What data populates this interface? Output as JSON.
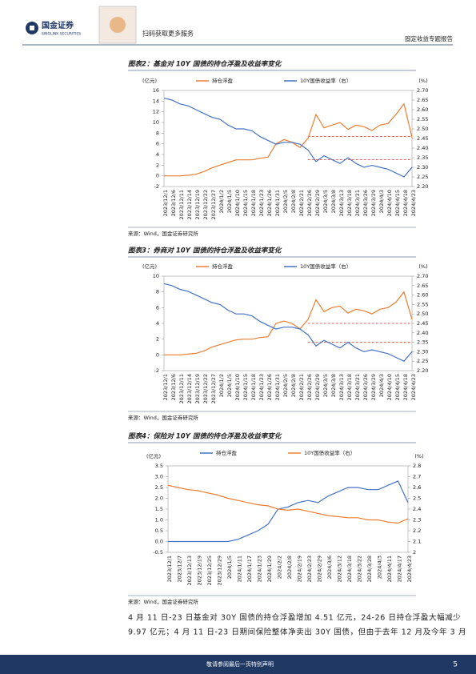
{
  "header": {
    "logo": "国金证券",
    "logo_en": "SINOLINK SECURITIES",
    "qr_text": "扫码获取更多服务",
    "report_type": "固定收益专题报告"
  },
  "chart_data": [
    {
      "type": "line",
      "title": "图表2：基金对 10Y 国债的持仓浮盈及收益率变化",
      "y_label": "(亿元)",
      "y2_label": "(%)",
      "categories": [
        "2023/12/1",
        "2023/12/6",
        "2023/12/11",
        "2023/12/14",
        "2023/12/19",
        "2023/12/22",
        "2023/12/27",
        "2024/1/2",
        "2024/1/5",
        "2024/1/10",
        "2024/1/15",
        "2024/1/18",
        "2024/1/23",
        "2024/1/26",
        "2024/1/31",
        "2024/2/5",
        "2024/2/8",
        "2024/2/21",
        "2024/2/26",
        "2024/2/29",
        "2024/3/5",
        "2024/3/8",
        "2024/3/13",
        "2024/3/18",
        "2024/3/21",
        "2024/3/26",
        "2024/3/29",
        "2024/4/3",
        "2024/4/10",
        "2024/4/15",
        "2024/4/18",
        "2024/4/23"
      ],
      "series": [
        {
          "name": "持仓浮盈",
          "color": "#ED7D31",
          "values": [
            0,
            0,
            0,
            0.1,
            0.3,
            0.8,
            1.5,
            2,
            2.5,
            3,
            3,
            3,
            3.3,
            3.5,
            6,
            6.8,
            6.3,
            5.3,
            7,
            11.5,
            9,
            9.5,
            10,
            8.7,
            9.5,
            9.2,
            8.5,
            9.5,
            9.8,
            11.5,
            13.5,
            7.2
          ]
        },
        {
          "name": "10Y国债收益率（右）",
          "color": "#4472C4",
          "axis": "y2",
          "values": [
            2.66,
            2.65,
            2.63,
            2.62,
            2.6,
            2.58,
            2.56,
            2.55,
            2.52,
            2.5,
            2.5,
            2.49,
            2.46,
            2.44,
            2.42,
            2.43,
            2.43,
            2.42,
            2.39,
            2.33,
            2.36,
            2.34,
            2.32,
            2.35,
            2.32,
            2.3,
            2.31,
            2.3,
            2.29,
            2.27,
            2.25,
            2.3
          ]
        }
      ],
      "ylim": [
        -2,
        16
      ],
      "yticks": [
        -2,
        0,
        2,
        4,
        6,
        8,
        10,
        12,
        14,
        16
      ],
      "y2lim": [
        2.2,
        2.7
      ],
      "y2ticks": [
        {
          "value": 2.2,
          "label": "2.20"
        },
        2.25,
        {
          "value": 2.3,
          "label": "2.30"
        },
        2.35,
        {
          "value": 2.4,
          "label": "2.40"
        },
        2.45,
        {
          "value": 2.5,
          "label": "2.50"
        },
        2.55,
        {
          "value": 2.6,
          "label": "2.60"
        },
        2.65,
        {
          "value": 2.7,
          "label": "2.70"
        }
      ],
      "y2_reference_lines": [
        2.46,
        2.34
      ],
      "reference_color": "#E03030"
    },
    {
      "type": "line",
      "title": "图表3：券商对 10Y 国债的持仓浮盈及收益率变化",
      "y_label": "(亿元)",
      "y2_label": "(%)",
      "categories": [
        "2023/12/1",
        "2023/12/6",
        "2023/12/11",
        "2023/12/14",
        "2023/12/19",
        "2023/12/22",
        "2023/12/27",
        "2024/1/2",
        "2024/1/5",
        "2024/1/10",
        "2024/1/15",
        "2024/1/18",
        "2024/1/23",
        "2024/1/26",
        "2024/1/31",
        "2024/2/5",
        "2024/2/8",
        "2024/2/21",
        "2024/2/26",
        "2024/2/29",
        "2024/3/5",
        "2024/3/8",
        "2024/3/13",
        "2024/3/18",
        "2024/3/21",
        "2024/3/26",
        "2024/3/29",
        "2024/4/3",
        "2024/4/10",
        "2024/4/15",
        "2024/4/18",
        "2024/4/23"
      ],
      "series": [
        {
          "name": "持仓浮盈",
          "color": "#ED7D31",
          "values": [
            0,
            0,
            0,
            0.1,
            0.2,
            0.5,
            1,
            1.3,
            1.6,
            1.9,
            2,
            2,
            2.2,
            2.3,
            4,
            4.3,
            4,
            3.3,
            4.5,
            7,
            5.5,
            6,
            6.2,
            5.3,
            5.8,
            5.6,
            5.2,
            5.8,
            6,
            6.7,
            8,
            4.5
          ]
        },
        {
          "name": "10Y国债收益率（右）",
          "color": "#4472C4",
          "axis": "y2",
          "values": [
            2.66,
            2.65,
            2.63,
            2.62,
            2.6,
            2.58,
            2.56,
            2.55,
            2.52,
            2.5,
            2.5,
            2.49,
            2.46,
            2.44,
            2.42,
            2.43,
            2.43,
            2.42,
            2.39,
            2.33,
            2.36,
            2.34,
            2.32,
            2.35,
            2.32,
            2.3,
            2.31,
            2.3,
            2.29,
            2.27,
            2.25,
            2.3
          ]
        }
      ],
      "ylim": [
        -2,
        10
      ],
      "yticks": [
        -2,
        0,
        2,
        4,
        6,
        8,
        10
      ],
      "y2lim": [
        2.2,
        2.7
      ],
      "y2ticks": [
        {
          "value": 2.2,
          "label": "2.20"
        },
        2.25,
        {
          "value": 2.3,
          "label": "2.30"
        },
        2.35,
        {
          "value": 2.4,
          "label": "2.40"
        },
        2.45,
        {
          "value": 2.5,
          "label": "2.50"
        },
        2.55,
        {
          "value": 2.6,
          "label": "2.60"
        },
        2.65,
        {
          "value": 2.7,
          "label": "2.70"
        }
      ],
      "y2_reference_lines": [
        2.45,
        2.35
      ],
      "reference_color": "#E03030"
    },
    {
      "type": "line",
      "title": "图表4：保险对 10Y 国债的持仓浮盈及收益率变化",
      "y_label": "(亿元)",
      "y2_label": "(%)",
      "categories": [
        "2023/12/1",
        "2023/12/7",
        "2023/12/13",
        "2023/12/19",
        "2023/12/25",
        "2023/12/29",
        "2024/1/5",
        "2024/1/11",
        "2024/1/17",
        "2024/1/23",
        "2024/1/29",
        "2024/2/2",
        "2024/2/8",
        "2024/2/19",
        "2024/2/23",
        "2024/2/29",
        "2024/3/6",
        "2024/3/12",
        "2024/3/18",
        "2024/3/22",
        "2024/3/28",
        "2024/4/3",
        "2024/4/11",
        "2024/4/17",
        "2024/4/23"
      ],
      "series": [
        {
          "name": "持仓浮盈",
          "color": "#4472C4",
          "values": [
            0,
            0,
            0,
            0,
            0,
            0,
            0,
            0.1,
            0.3,
            0.5,
            0.8,
            1.5,
            1.6,
            1.8,
            1.9,
            1.8,
            2.1,
            2.3,
            2.5,
            2.5,
            2.4,
            2.4,
            2.6,
            2.8,
            1.8
          ]
        },
        {
          "name": "10Y国债收益率（右）",
          "color": "#ED7D31",
          "axis": "y2",
          "values": [
            2.62,
            2.6,
            2.58,
            2.57,
            2.55,
            2.53,
            2.5,
            2.48,
            2.46,
            2.44,
            2.43,
            2.4,
            2.39,
            2.4,
            2.38,
            2.36,
            2.34,
            2.33,
            2.32,
            2.32,
            2.3,
            2.3,
            2.28,
            2.27,
            2.31
          ]
        }
      ],
      "ylim": [
        -0.5,
        3.5
      ],
      "yticks": [
        -0.5,
        {
          "value": 0,
          "label": "0.0"
        },
        0.5,
        {
          "value": 1,
          "label": "1.0"
        },
        1.5,
        {
          "value": 2,
          "label": "2.0"
        },
        2.5,
        {
          "value": 3,
          "label": "3.0"
        },
        3.5
      ],
      "y2lim": [
        2,
        2.8
      ],
      "y2ticks": [
        2,
        2.1,
        2.2,
        2.3,
        2.4,
        2.5,
        2.6,
        2.7,
        2.8
      ]
    }
  ],
  "sources": [
    "来源：Wind，国金证券研究所",
    "来源：Wind，国金证券研究所",
    "来源：Wind，国金证券研究所"
  ],
  "body": [
    "4 月 11 日-23 日基金对 30Y 国债的持仓浮盈增加 4.51 亿元，24-26 日持仓浮盈大幅减少",
    "9.97 亿元；4 月 11 日-23 日期间保险整体净卖出 30Y 国债，但由于去年 12 月及今年 3 月"
  ],
  "footer": {
    "note": "敬请参阅最后一页特别声明",
    "page": "5"
  }
}
